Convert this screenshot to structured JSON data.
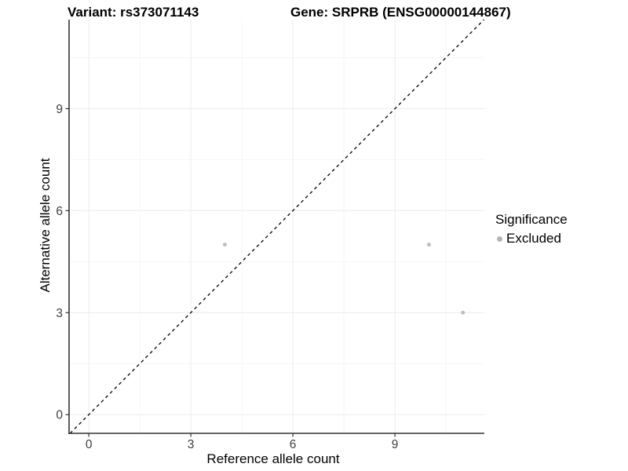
{
  "titles": {
    "variant": "Variant: rs373071143",
    "gene": "Gene: SRPRB (ENSG00000144867)"
  },
  "axes": {
    "x_label": "Reference allele count",
    "y_label": "Alternative allele count"
  },
  "legend": {
    "title": "Significance",
    "items": [
      {
        "label": "Excluded",
        "color": "#bebebe"
      }
    ]
  },
  "colors": {
    "background": "#ffffff",
    "point": "#bebebe",
    "legend_key": "#b5b5b5",
    "grid_major": "#ececec",
    "grid_minor": "#f5f5f5",
    "axis_line": "#333333",
    "tick_mark": "#333333",
    "tick_label": "#404040",
    "reference_line": "#000000"
  },
  "chart_data": {
    "type": "scatter",
    "title": "Variant: rs373071143   Gene: SRPRB (ENSG00000144867)",
    "xlabel": "Reference allele count",
    "ylabel": "Alternative allele count",
    "series": [
      {
        "name": "Excluded",
        "color": "#bebebe",
        "points": [
          {
            "x": 4,
            "y": 5
          },
          {
            "x": 10,
            "y": 5
          },
          {
            "x": 11,
            "y": 3
          }
        ]
      }
    ],
    "x_ticks": [
      0,
      3,
      6,
      9
    ],
    "y_ticks": [
      0,
      3,
      6,
      9
    ],
    "x_minor_ticks": [
      1.5,
      4.5,
      7.5,
      10.5
    ],
    "y_minor_ticks": [
      1.5,
      4.5,
      7.5,
      10.5
    ],
    "xlim": [
      -0.58,
      11.63
    ],
    "ylim": [
      -0.55,
      11.62
    ],
    "reference_line": {
      "type": "identity",
      "style": "dashed",
      "color": "#000000"
    },
    "grid": true,
    "legend_position": "right",
    "legend_title": "Significance"
  }
}
